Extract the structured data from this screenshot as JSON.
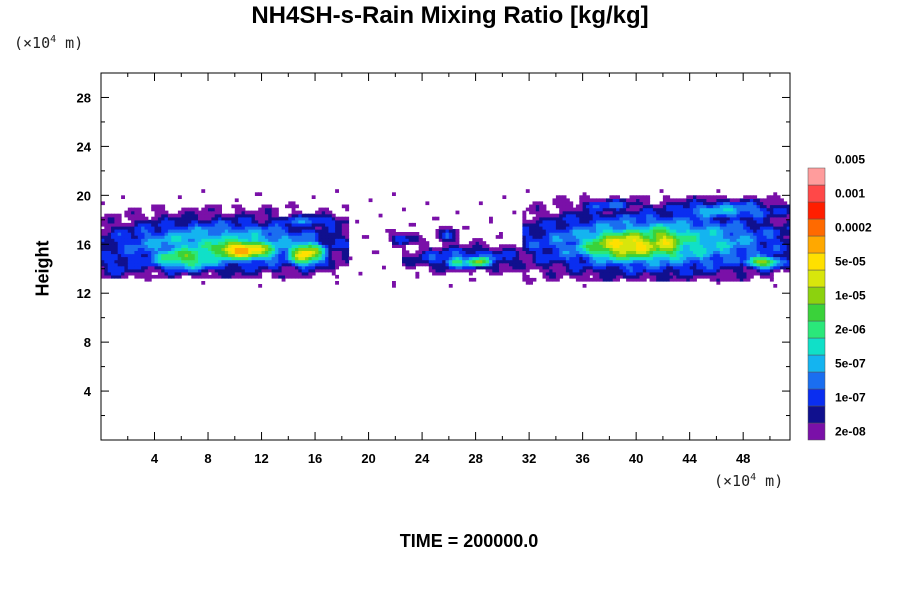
{
  "chart_data": {
    "type": "heatmap",
    "title": "NH4SH-s-Rain Mixing Ratio [kg/kg]",
    "ylabel": "Height",
    "x_unit_prefix": "(×10",
    "x_unit_exp": "4",
    "x_unit_suffix": " m)",
    "y_unit_prefix": "(×10",
    "y_unit_exp": "4",
    "y_unit_suffix": " m)",
    "xlim": [
      0,
      51.5
    ],
    "ylim": [
      0,
      30
    ],
    "x_ticks": [
      4,
      8,
      12,
      16,
      20,
      24,
      28,
      32,
      36,
      40,
      44,
      48
    ],
    "y_ticks": [
      4,
      8,
      12,
      16,
      20,
      24,
      28
    ],
    "colorbar": {
      "levels": [
        "2e-08",
        "1e-07",
        "5e-07",
        "2e-06",
        "1e-05",
        "5e-05",
        "0.0002",
        "0.001",
        "0.005"
      ],
      "colors": [
        "#7a10a8",
        "#10108e",
        "#0a2ef0",
        "#1a6ef0",
        "#14b4f0",
        "#10e0c8",
        "#2ae87a",
        "#3ad23a",
        "#8cd20e",
        "#d8e60c",
        "#ffe000",
        "#ffa800",
        "#ff6a00",
        "#ff1e00",
        "#ff4848",
        "#ff9c9c"
      ]
    },
    "cloud_regions": [
      {
        "x": [
          0,
          18.2
        ],
        "y": [
          13.4,
          19.0
        ],
        "peak_class": 13
      },
      {
        "x": [
          21.8,
          51.5
        ],
        "y": [
          13.2,
          19.8
        ],
        "peak_class": 11
      }
    ],
    "time_label": "TIME = 200000.0"
  }
}
